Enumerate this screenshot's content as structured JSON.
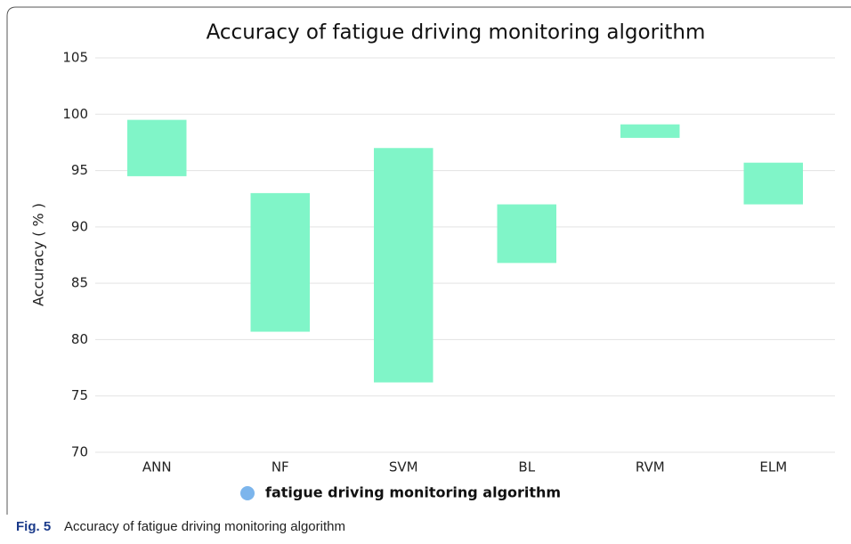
{
  "chart_data": {
    "type": "floating_bar",
    "title": "Accuracy of fatigue driving monitoring algorithm",
    "y_label": "Accuracy ( % )",
    "categories": [
      "ANN",
      "NF",
      "SVM",
      "BL",
      "RVM",
      "ELM"
    ],
    "series": [
      {
        "name": "fatigue driving monitoring algorithm",
        "color": "#80f5c8",
        "legend_color": "#7cb5ec",
        "values": [
          [
            94.5,
            99.5
          ],
          [
            80.7,
            93
          ],
          [
            76.2,
            97
          ],
          [
            86.8,
            92
          ],
          [
            97.9,
            99.1
          ],
          [
            92,
            95.7
          ]
        ]
      }
    ],
    "ylim": [
      70,
      105
    ],
    "yticks": [
      70,
      75,
      80,
      85,
      90,
      95,
      100,
      105
    ],
    "grid": true
  },
  "caption": {
    "label": "Fig. 5",
    "text": "Accuracy of fatigue driving monitoring algorithm"
  }
}
